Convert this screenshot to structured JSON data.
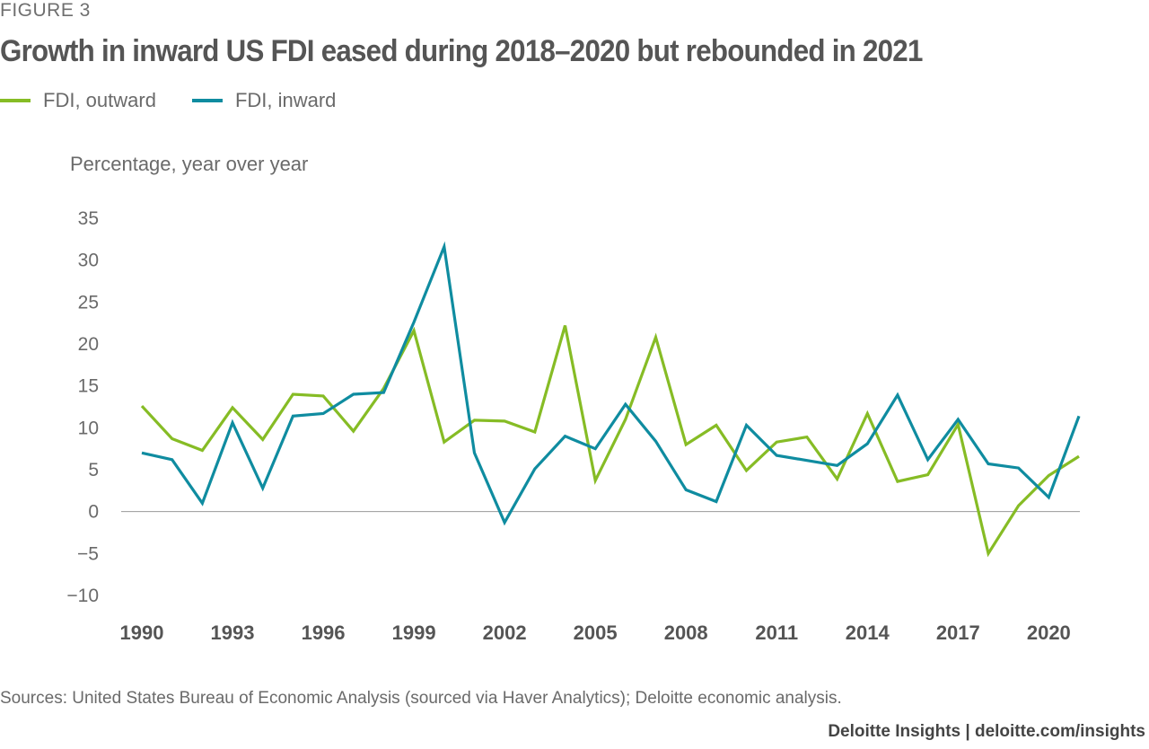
{
  "figure_label": "FIGURE 3",
  "title": "Growth in inward US FDI eased during 2018–2020 but rebounded in 2021",
  "footnote": "Sources: United States Bureau of Economic Analysis (sourced via Haver Analytics); Deloitte economic analysis.",
  "footer": "Deloitte Insights | deloitte.com/insights",
  "chart_data": {
    "type": "line",
    "ylabel": "Percentage, year over year",
    "xlabel": "",
    "ylim": [
      -10,
      35
    ],
    "yticks": [
      35,
      30,
      25,
      20,
      15,
      10,
      5,
      0,
      -5,
      -10
    ],
    "ytick_labels": [
      "35",
      "30",
      "25",
      "20",
      "15",
      "10",
      "5",
      "0",
      "−5",
      "−10"
    ],
    "xlim": [
      1990,
      2021
    ],
    "xticks": [
      1990,
      1993,
      1996,
      1999,
      2002,
      2005,
      2008,
      2011,
      2014,
      2017,
      2020
    ],
    "xtick_labels": [
      "1990",
      "1993",
      "1996",
      "1999",
      "2002",
      "2005",
      "2008",
      "2011",
      "2014",
      "2017",
      "2020"
    ],
    "grid": false,
    "legend_position": "top-left",
    "x": [
      1990,
      1991,
      1992,
      1993,
      1994,
      1995,
      1996,
      1997,
      1998,
      1999,
      2000,
      2001,
      2002,
      2003,
      2004,
      2005,
      2006,
      2007,
      2008,
      2009,
      2010,
      2011,
      2012,
      2013,
      2014,
      2015,
      2016,
      2017,
      2018,
      2019,
      2020,
      2021
    ],
    "series": [
      {
        "name": "FDI, outward",
        "color": "#86bc25",
        "values": [
          12.6,
          8.7,
          7.3,
          12.4,
          8.6,
          14.0,
          13.8,
          9.6,
          14.7,
          21.6,
          8.3,
          10.9,
          10.8,
          9.5,
          22.2,
          3.7,
          11.0,
          20.8,
          8.0,
          10.3,
          4.9,
          8.3,
          8.9,
          3.9,
          11.7,
          3.6,
          4.4,
          10.4,
          -5.0,
          0.7,
          4.3,
          6.6
        ]
      },
      {
        "name": "FDI, inward",
        "color": "#0f8ca0",
        "values": [
          7.0,
          6.2,
          1.0,
          10.6,
          2.8,
          11.4,
          11.7,
          14.0,
          14.2,
          22.6,
          31.6,
          7.0,
          -1.3,
          5.1,
          9.0,
          7.5,
          12.8,
          8.4,
          2.6,
          1.2,
          10.3,
          6.7,
          6.1,
          5.5,
          8.1,
          13.9,
          6.2,
          11.0,
          5.7,
          5.2,
          1.7,
          11.4
        ]
      }
    ]
  }
}
